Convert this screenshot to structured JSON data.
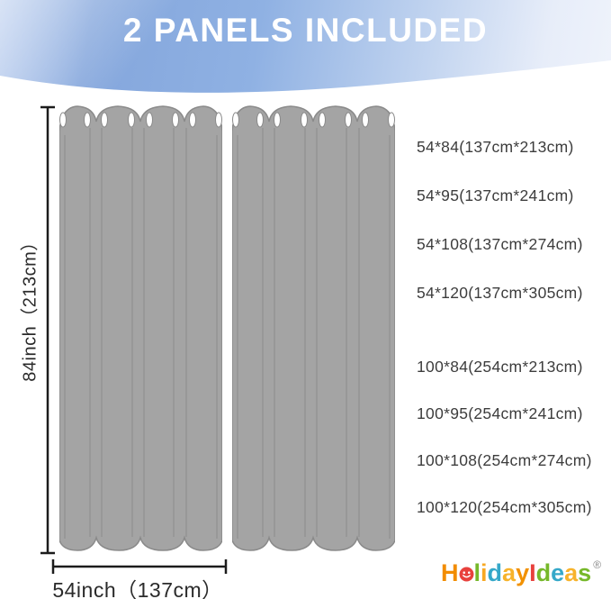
{
  "header": {
    "title": "2 PANELS INCLUDED"
  },
  "diagram": {
    "panel_count": "2",
    "panel_color": "#a4a4a4",
    "height_label": "84inch（213cm）",
    "width_label": "54inch（137cm）"
  },
  "sizes": {
    "group1": [
      "54*84(137cm*213cm)",
      "54*95(137cm*241cm)",
      "54*108(137cm*274cm)",
      "54*120(137cm*305cm)"
    ],
    "group2": [
      "100*84(254cm*213cm)",
      "100*95(254cm*241cm)",
      "100*108(254cm*274cm)",
      "100*120(254cm*305cm)"
    ]
  },
  "brand": {
    "name": "HolidayIdeas",
    "registered_mark": "®",
    "letters": [
      {
        "ch": "H",
        "color": "#F28C00"
      },
      {
        "ch": "o",
        "color": "#E8413D",
        "face": true
      },
      {
        "ch": "l",
        "color": "#76B82A"
      },
      {
        "ch": "i",
        "color": "#F7A823"
      },
      {
        "ch": "d",
        "color": "#35A8C9"
      },
      {
        "ch": "a",
        "color": "#F7B32B"
      },
      {
        "ch": "y",
        "color": "#F29100"
      },
      {
        "ch": "I",
        "color": "#E8413D"
      },
      {
        "ch": "d",
        "color": "#76B82A"
      },
      {
        "ch": "e",
        "color": "#35A8C9"
      },
      {
        "ch": "a",
        "color": "#F7B32B"
      },
      {
        "ch": "s",
        "color": "#76B82A"
      }
    ]
  }
}
